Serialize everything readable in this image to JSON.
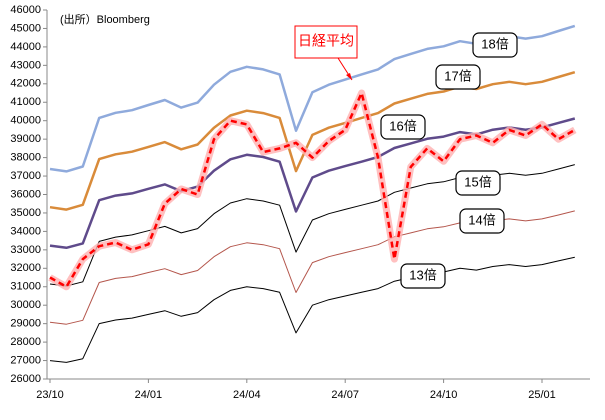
{
  "chart_data": {
    "type": "line",
    "annotations": [
      "(出所）Bloomberg"
    ],
    "categories": [
      "23/10",
      null,
      null,
      null,
      null,
      null,
      "24/01",
      null,
      null,
      null,
      null,
      null,
      "24/04",
      null,
      null,
      null,
      null,
      null,
      "24/07",
      null,
      null,
      null,
      null,
      null,
      "24/10",
      null,
      null,
      null,
      null,
      null,
      "25/01",
      null,
      null
    ],
    "ylim": [
      26000,
      46000
    ],
    "yticks": [
      26000,
      27000,
      28000,
      29000,
      30000,
      31000,
      32000,
      33000,
      34000,
      35000,
      36000,
      37000,
      38000,
      39000,
      40000,
      41000,
      42000,
      43000,
      44000,
      45000,
      46000
    ],
    "grid": false,
    "series": [
      {
        "name": "18倍",
        "color": "#8FAADC",
        "values": [
          37380,
          37250,
          37520,
          40150,
          40430,
          40570,
          40850,
          41120,
          40710,
          40980,
          41950,
          42650,
          42920,
          42780,
          42510,
          39460,
          41540,
          41950,
          42230,
          42510,
          42780,
          43340,
          43620,
          43890,
          44030,
          44310,
          44170,
          44450,
          44580,
          44450,
          44580,
          44860,
          45140
        ]
      },
      {
        "name": "17倍",
        "color": "#D98B3A",
        "values": [
          35310,
          35180,
          35440,
          37920,
          38180,
          38320,
          38580,
          38840,
          38450,
          38710,
          39620,
          40280,
          40540,
          40410,
          40150,
          37270,
          39230,
          39620,
          39880,
          40150,
          40410,
          40930,
          41190,
          41450,
          41580,
          41850,
          41720,
          41980,
          42110,
          41980,
          42110,
          42370,
          42630
        ]
      },
      {
        "name": "16倍",
        "color": "#5F4B8B",
        "values": [
          33230,
          33110,
          33350,
          35690,
          35940,
          36060,
          36310,
          36550,
          36180,
          36430,
          37290,
          37910,
          38150,
          38030,
          37780,
          35080,
          36920,
          37290,
          37540,
          37780,
          38030,
          38520,
          38770,
          39020,
          39140,
          39380,
          39260,
          39510,
          39630,
          39510,
          39630,
          39880,
          40120
        ]
      },
      {
        "name": "15倍",
        "color": "#000000",
        "values": [
          31150,
          31040,
          31270,
          33460,
          33690,
          33810,
          34040,
          34270,
          33920,
          34150,
          34960,
          35540,
          35770,
          35650,
          35420,
          32880,
          34620,
          34960,
          35190,
          35420,
          35650,
          36120,
          36350,
          36580,
          36690,
          36920,
          36810,
          37040,
          37150,
          37040,
          37150,
          37380,
          37620
        ]
      },
      {
        "name": "14倍",
        "color": "#B4564C",
        "values": [
          29080,
          28970,
          29180,
          31230,
          31450,
          31550,
          31770,
          31980,
          31660,
          31880,
          32630,
          33170,
          33380,
          33280,
          33060,
          30690,
          32310,
          32630,
          32850,
          33060,
          33280,
          33710,
          33920,
          34140,
          34250,
          34460,
          34350,
          34570,
          34680,
          34570,
          34680,
          34890,
          35110
        ]
      },
      {
        "name": "13倍",
        "color": "#000000",
        "values": [
          27000,
          26900,
          27100,
          29000,
          29200,
          29300,
          29500,
          29700,
          29400,
          29600,
          30300,
          30800,
          31000,
          30900,
          30700,
          28500,
          30000,
          30300,
          30500,
          30700,
          30900,
          31300,
          31500,
          31700,
          31800,
          32000,
          31900,
          32100,
          32200,
          32100,
          32200,
          32400,
          32600
        ]
      },
      {
        "name": "日経平均",
        "color": "#FF0000",
        "dashed": true,
        "values": [
          31500,
          31000,
          32500,
          33200,
          33400,
          33000,
          33300,
          35500,
          36300,
          36000,
          39000,
          40000,
          39800,
          38300,
          38500,
          38800,
          38000,
          38900,
          39500,
          41500,
          38000,
          32500,
          37500,
          38500,
          37800,
          39000,
          39200,
          38800,
          39500,
          39200,
          39800,
          39000,
          39500
        ]
      }
    ]
  }
}
